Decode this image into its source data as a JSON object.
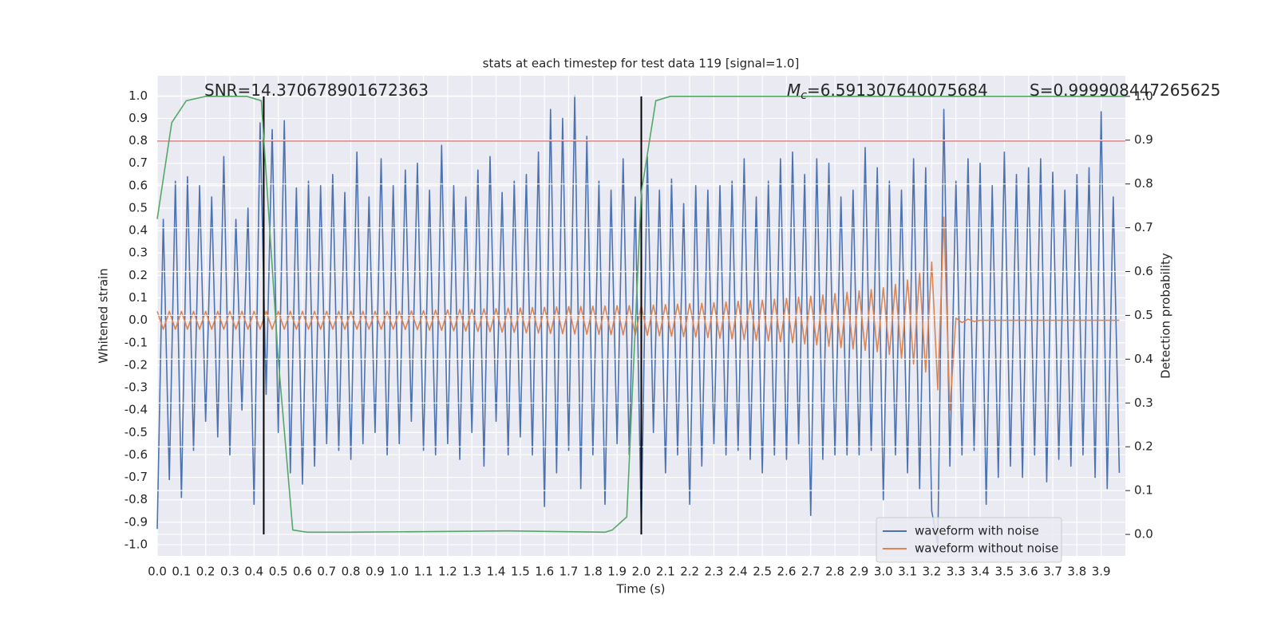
{
  "chart_data": {
    "type": "line",
    "title": "stats at each timestep for test data 119 [signal=1.0]",
    "x_label": "Time (s)",
    "y_label": "Whitened strain",
    "y2_label": "Detection probability",
    "xlim": [
      0,
      4.0
    ],
    "ylim": [
      -1.05,
      1.09
    ],
    "y2lim": [
      -0.049,
      1.047
    ],
    "grid": true,
    "legend": "lower right",
    "xticks": [
      {
        "value": 0,
        "label": "0.0"
      },
      {
        "value": 0.1,
        "label": "0.1"
      },
      {
        "value": 0.2,
        "label": "0.2"
      },
      {
        "value": 0.3,
        "label": "0.3"
      },
      {
        "value": 0.4,
        "label": "0.4"
      },
      {
        "value": 0.5,
        "label": "0.5"
      },
      {
        "value": 0.6,
        "label": "0.6"
      },
      {
        "value": 0.7,
        "label": "0.7"
      },
      {
        "value": 0.8,
        "label": "0.8"
      },
      {
        "value": 0.9,
        "label": "0.9"
      },
      {
        "value": 1,
        "label": "1.0"
      },
      {
        "value": 1.1,
        "label": "1.1"
      },
      {
        "value": 1.2,
        "label": "1.2"
      },
      {
        "value": 1.3,
        "label": "1.3"
      },
      {
        "value": 1.4,
        "label": "1.4"
      },
      {
        "value": 1.5,
        "label": "1.5"
      },
      {
        "value": 1.6,
        "label": "1.6"
      },
      {
        "value": 1.7,
        "label": "1.7"
      },
      {
        "value": 1.8,
        "label": "1.8"
      },
      {
        "value": 1.9,
        "label": "1.9"
      },
      {
        "value": 2,
        "label": "2.0"
      },
      {
        "value": 2.1,
        "label": "2.1"
      },
      {
        "value": 2.2,
        "label": "2.2"
      },
      {
        "value": 2.3,
        "label": "2.3"
      },
      {
        "value": 2.4,
        "label": "2.4"
      },
      {
        "value": 2.5,
        "label": "2.5"
      },
      {
        "value": 2.6,
        "label": "2.6"
      },
      {
        "value": 2.7,
        "label": "2.7"
      },
      {
        "value": 2.8,
        "label": "2.8"
      },
      {
        "value": 2.9,
        "label": "2.9"
      },
      {
        "value": 3,
        "label": "3.0"
      },
      {
        "value": 3.1,
        "label": "3.1"
      },
      {
        "value": 3.2,
        "label": "3.2"
      },
      {
        "value": 3.3,
        "label": "3.3"
      },
      {
        "value": 3.4,
        "label": "3.4"
      },
      {
        "value": 3.5,
        "label": "3.5"
      },
      {
        "value": 3.6,
        "label": "3.6"
      },
      {
        "value": 3.7,
        "label": "3.7"
      },
      {
        "value": 3.8,
        "label": "3.8"
      },
      {
        "value": 3.9,
        "label": "3.9"
      }
    ],
    "yticks": [
      {
        "value": 1,
        "label": "1.0"
      },
      {
        "value": 0.9,
        "label": "0.9"
      },
      {
        "value": 0.8,
        "label": "0.8"
      },
      {
        "value": 0.7,
        "label": "0.7"
      },
      {
        "value": 0.6,
        "label": "0.6"
      },
      {
        "value": 0.5,
        "label": "0.5"
      },
      {
        "value": 0.4,
        "label": "0.4"
      },
      {
        "value": 0.3,
        "label": "0.3"
      },
      {
        "value": 0.2,
        "label": "0.2"
      },
      {
        "value": 0.1,
        "label": "0.1"
      },
      {
        "value": 0,
        "label": "0.0"
      },
      {
        "value": -0.1,
        "label": "-0.1"
      },
      {
        "value": -0.2,
        "label": "-0.2"
      },
      {
        "value": -0.3,
        "label": "-0.3"
      },
      {
        "value": -0.4,
        "label": "-0.4"
      },
      {
        "value": -0.5,
        "label": "-0.5"
      },
      {
        "value": -0.6,
        "label": "-0.6"
      },
      {
        "value": -0.7,
        "label": "-0.7"
      },
      {
        "value": -0.8,
        "label": "-0.8"
      },
      {
        "value": -0.9,
        "label": "-0.9"
      },
      {
        "value": -1,
        "label": "-1.0"
      }
    ],
    "y2ticks": [
      {
        "value": 0,
        "label": "0.0"
      },
      {
        "value": 0.1,
        "label": "0.1"
      },
      {
        "value": 0.2,
        "label": "0.2"
      },
      {
        "value": 0.3,
        "label": "0.3"
      },
      {
        "value": 0.4,
        "label": "0.4"
      },
      {
        "value": 0.5,
        "label": "0.5"
      },
      {
        "value": 0.6,
        "label": "0.6"
      },
      {
        "value": 0.7,
        "label": "0.7"
      },
      {
        "value": 0.8,
        "label": "0.8"
      },
      {
        "value": 0.9,
        "label": "0.9"
      },
      {
        "value": 1,
        "label": "1.0"
      }
    ],
    "series": [
      {
        "name": "waveform with noise",
        "color": "#4c72b0",
        "axis": "y",
        "x": [
          0,
          0.025,
          0.05,
          0.075,
          0.1,
          0.125,
          0.15,
          0.175,
          0.2,
          0.225,
          0.25,
          0.275,
          0.3,
          0.325,
          0.35,
          0.375,
          0.4,
          0.425,
          0.45,
          0.475,
          0.5,
          0.525,
          0.55,
          0.575,
          0.6,
          0.625,
          0.65,
          0.675,
          0.7,
          0.725,
          0.75,
          0.775,
          0.8,
          0.825,
          0.85,
          0.875,
          0.9,
          0.925,
          0.95,
          0.975,
          1,
          1.025,
          1.05,
          1.075,
          1.1,
          1.125,
          1.15,
          1.175,
          1.2,
          1.225,
          1.25,
          1.275,
          1.3,
          1.325,
          1.35,
          1.375,
          1.4,
          1.425,
          1.45,
          1.475,
          1.5,
          1.525,
          1.55,
          1.575,
          1.6,
          1.625,
          1.65,
          1.675,
          1.7,
          1.725,
          1.75,
          1.775,
          1.8,
          1.825,
          1.85,
          1.875,
          1.9,
          1.925,
          1.95,
          1.975,
          2,
          2.025,
          2.05,
          2.075,
          2.1,
          2.125,
          2.15,
          2.175,
          2.2,
          2.225,
          2.25,
          2.275,
          2.3,
          2.325,
          2.35,
          2.375,
          2.4,
          2.425,
          2.45,
          2.475,
          2.5,
          2.525,
          2.55,
          2.575,
          2.6,
          2.625,
          2.65,
          2.675,
          2.7,
          2.725,
          2.75,
          2.775,
          2.8,
          2.825,
          2.85,
          2.875,
          2.9,
          2.925,
          2.95,
          2.975,
          3,
          3.025,
          3.05,
          3.075,
          3.1,
          3.125,
          3.15,
          3.175,
          3.2,
          3.225,
          3.25,
          3.275,
          3.3,
          3.325,
          3.35,
          3.375,
          3.4,
          3.425,
          3.45,
          3.475,
          3.5,
          3.525,
          3.55,
          3.575,
          3.6,
          3.625,
          3.65,
          3.675,
          3.7,
          3.725,
          3.75,
          3.775,
          3.8,
          3.825,
          3.85,
          3.875,
          3.9,
          3.925,
          3.95,
          3.975
        ],
        "values": [
          -0.93,
          0.45,
          -0.71,
          0.62,
          -0.79,
          0.64,
          -0.58,
          0.6,
          -0.45,
          0.55,
          -0.52,
          0.73,
          -0.6,
          0.45,
          -0.4,
          0.5,
          -0.82,
          0.88,
          -0.33,
          0.85,
          -0.5,
          0.89,
          -0.68,
          0.59,
          -0.73,
          0.62,
          -0.65,
          0.6,
          -0.55,
          0.65,
          -0.58,
          0.57,
          -0.62,
          0.75,
          -0.55,
          0.55,
          -0.5,
          0.72,
          -0.6,
          0.6,
          -0.55,
          0.67,
          -0.45,
          0.7,
          -0.58,
          0.58,
          -0.6,
          0.78,
          -0.55,
          0.6,
          -0.62,
          0.55,
          -0.5,
          0.67,
          -0.65,
          0.73,
          -0.45,
          0.57,
          -0.6,
          0.62,
          -0.52,
          0.65,
          -0.6,
          0.75,
          -0.83,
          0.94,
          -0.68,
          0.9,
          -0.58,
          1.0,
          -0.75,
          0.82,
          -0.6,
          0.62,
          -0.82,
          0.58,
          -0.55,
          0.72,
          -0.6,
          0.55,
          -0.92,
          0.73,
          -0.5,
          0.58,
          -0.68,
          0.63,
          -0.6,
          0.52,
          -0.82,
          0.6,
          -0.65,
          0.58,
          -0.55,
          0.6,
          -0.6,
          0.62,
          -0.58,
          0.72,
          -0.62,
          0.55,
          -0.68,
          0.62,
          -0.6,
          0.72,
          -0.62,
          0.75,
          -0.55,
          0.65,
          -0.87,
          0.72,
          -0.62,
          0.7,
          -0.6,
          0.55,
          -0.6,
          0.58,
          -0.6,
          0.77,
          -0.58,
          0.68,
          -0.8,
          0.62,
          -0.6,
          0.58,
          -0.68,
          0.72,
          -0.75,
          0.68,
          -0.85,
          -1.0,
          0.94,
          -0.65,
          0.62,
          -0.6,
          0.72,
          -0.58,
          0.7,
          -0.82,
          0.6,
          -0.7,
          0.75,
          -0.65,
          0.65,
          -0.7,
          0.68,
          -0.6,
          0.72,
          -0.72,
          0.66,
          -0.62,
          0.58,
          -0.65,
          0.65,
          -0.6,
          0.68,
          -0.7,
          0.93,
          -0.75,
          0.55,
          -0.68
        ]
      },
      {
        "name": "waveform without noise",
        "color": "#dd8452",
        "axis": "y",
        "x": [
          0,
          0.025,
          0.05,
          0.075,
          0.1,
          0.125,
          0.15,
          0.175,
          0.2,
          0.225,
          0.25,
          0.275,
          0.3,
          0.325,
          0.35,
          0.375,
          0.4,
          0.425,
          0.45,
          0.475,
          0.5,
          0.525,
          0.55,
          0.575,
          0.6,
          0.625,
          0.65,
          0.675,
          0.7,
          0.725,
          0.75,
          0.775,
          0.8,
          0.825,
          0.85,
          0.875,
          0.9,
          0.925,
          0.95,
          0.975,
          1,
          1.025,
          1.05,
          1.075,
          1.1,
          1.125,
          1.15,
          1.175,
          1.2,
          1.225,
          1.25,
          1.275,
          1.3,
          1.325,
          1.35,
          1.375,
          1.4,
          1.425,
          1.45,
          1.475,
          1.5,
          1.525,
          1.55,
          1.575,
          1.6,
          1.625,
          1.65,
          1.675,
          1.7,
          1.725,
          1.75,
          1.775,
          1.8,
          1.825,
          1.85,
          1.875,
          1.9,
          1.925,
          1.95,
          1.975,
          2,
          2.025,
          2.05,
          2.075,
          2.1,
          2.125,
          2.15,
          2.175,
          2.2,
          2.225,
          2.25,
          2.275,
          2.3,
          2.325,
          2.35,
          2.375,
          2.4,
          2.425,
          2.45,
          2.475,
          2.5,
          2.525,
          2.55,
          2.575,
          2.6,
          2.625,
          2.65,
          2.675,
          2.7,
          2.725,
          2.75,
          2.775,
          2.8,
          2.825,
          2.85,
          2.875,
          2.9,
          2.925,
          2.95,
          2.975,
          3,
          3.025,
          3.05,
          3.075,
          3.1,
          3.125,
          3.15,
          3.175,
          3.2,
          3.225,
          3.25,
          3.275,
          3.3,
          3.325,
          3.35,
          3.375,
          3.4,
          3.425,
          3.45,
          3.475,
          3.5,
          3.525,
          3.55,
          3.575,
          3.6,
          3.625,
          3.65,
          3.675,
          3.7,
          3.725,
          3.75,
          3.775,
          3.8,
          3.825,
          3.85,
          3.875,
          3.9,
          3.925,
          3.95,
          3.975
        ],
        "values": [
          0.04,
          -0.04,
          0.04,
          -0.04,
          0.04,
          -0.04,
          0.04,
          -0.04,
          0.04,
          -0.04,
          0.04,
          -0.04,
          0.04,
          -0.04,
          0.04,
          -0.04,
          0.04,
          -0.04,
          0.04,
          -0.04,
          0.04,
          -0.04,
          0.04,
          -0.04,
          0.04,
          -0.04,
          0.04,
          -0.04,
          0.04,
          -0.04,
          0.04,
          -0.04,
          0.04,
          -0.04,
          0.04,
          -0.04,
          0.04,
          -0.04,
          0.04,
          -0.04,
          0.04,
          -0.041,
          0.042,
          -0.042,
          0.043,
          -0.044,
          0.045,
          -0.045,
          0.046,
          -0.047,
          0.048,
          -0.048,
          0.049,
          -0.05,
          0.051,
          -0.051,
          0.052,
          -0.053,
          0.054,
          -0.054,
          0.055,
          -0.056,
          0.057,
          -0.057,
          0.058,
          -0.059,
          0.06,
          -0.06,
          0.061,
          -0.061,
          0.062,
          -0.062,
          0.063,
          -0.063,
          0.064,
          -0.064,
          0.065,
          -0.065,
          0.065,
          -0.066,
          0.066,
          -0.067,
          0.068,
          -0.069,
          0.07,
          -0.071,
          0.072,
          -0.073,
          0.074,
          -0.075,
          0.076,
          -0.077,
          0.079,
          -0.08,
          0.082,
          -0.083,
          0.085,
          -0.086,
          0.088,
          -0.089,
          0.09,
          -0.092,
          0.094,
          -0.096,
          0.098,
          -0.1,
          0.103,
          -0.105,
          0.108,
          -0.11,
          0.113,
          -0.116,
          0.119,
          -0.122,
          0.125,
          -0.128,
          0.131,
          -0.134,
          0.137,
          -0.14,
          0.145,
          -0.152,
          0.16,
          -0.17,
          0.18,
          -0.195,
          0.21,
          -0.23,
          0.26,
          -0.31,
          0.46,
          -0.4,
          0.01,
          -0.01,
          0.005,
          -0.005,
          0,
          0,
          0,
          0,
          0,
          0,
          0,
          0,
          0,
          0,
          0,
          0,
          0,
          0,
          0,
          0,
          0,
          0,
          0,
          0,
          0,
          0,
          0,
          0
        ]
      },
      {
        "color": "#55a868",
        "axis": "y2",
        "x": [
          0,
          0.06,
          0.12,
          0.2,
          0.3,
          0.37,
          0.43,
          0.5,
          0.56,
          0.62,
          0.8,
          1.45,
          1.85,
          1.88,
          1.94,
          2.0,
          2.06,
          2.12,
          2.5,
          4.0
        ],
        "values": [
          0.72,
          0.94,
          0.99,
          1.0,
          1.0,
          1.0,
          0.99,
          0.4,
          0.01,
          0.005,
          0.005,
          0.008,
          0.005,
          0.01,
          0.04,
          0.78,
          0.99,
          1.0,
          1.0,
          1.0
        ]
      }
    ],
    "hlines": [
      {
        "y": 0.8,
        "color": "#c44e52"
      }
    ],
    "vlines": [
      {
        "x": 0.44,
        "ymin": 0,
        "ymax": 1,
        "axis": "y2",
        "color": "#000000"
      },
      {
        "x": 2.0,
        "ymin": 0,
        "ymax": 1,
        "axis": "y2",
        "color": "#000000"
      }
    ],
    "annotations": [
      {
        "text": "SNR=14.370678901672363"
      },
      {
        "symbol": "M",
        "subscript": "c",
        "text": "=6.591307640075684"
      },
      {
        "text": "S=0.999908447265625"
      }
    ]
  }
}
